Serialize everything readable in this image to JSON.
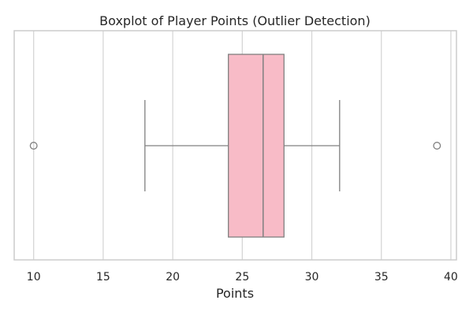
{
  "chart_data": {
    "type": "boxplot",
    "title": "Boxplot of Player Points (Outlier Detection)",
    "xlabel": "Points",
    "ylabel": "",
    "orientation": "horizontal",
    "xlim": [
      8.6,
      40.4
    ],
    "xticks": [
      10,
      15,
      20,
      25,
      30,
      35,
      40
    ],
    "grid": true,
    "box": {
      "whisker_low": 18,
      "q1": 24,
      "median": 26.5,
      "q3": 28,
      "whisker_high": 32
    },
    "outliers": [
      10,
      39
    ],
    "colors": {
      "box_fill": "#f8bbc7",
      "line": "#808080",
      "grid": "#d3d3d3",
      "frame": "#cccccc"
    }
  }
}
